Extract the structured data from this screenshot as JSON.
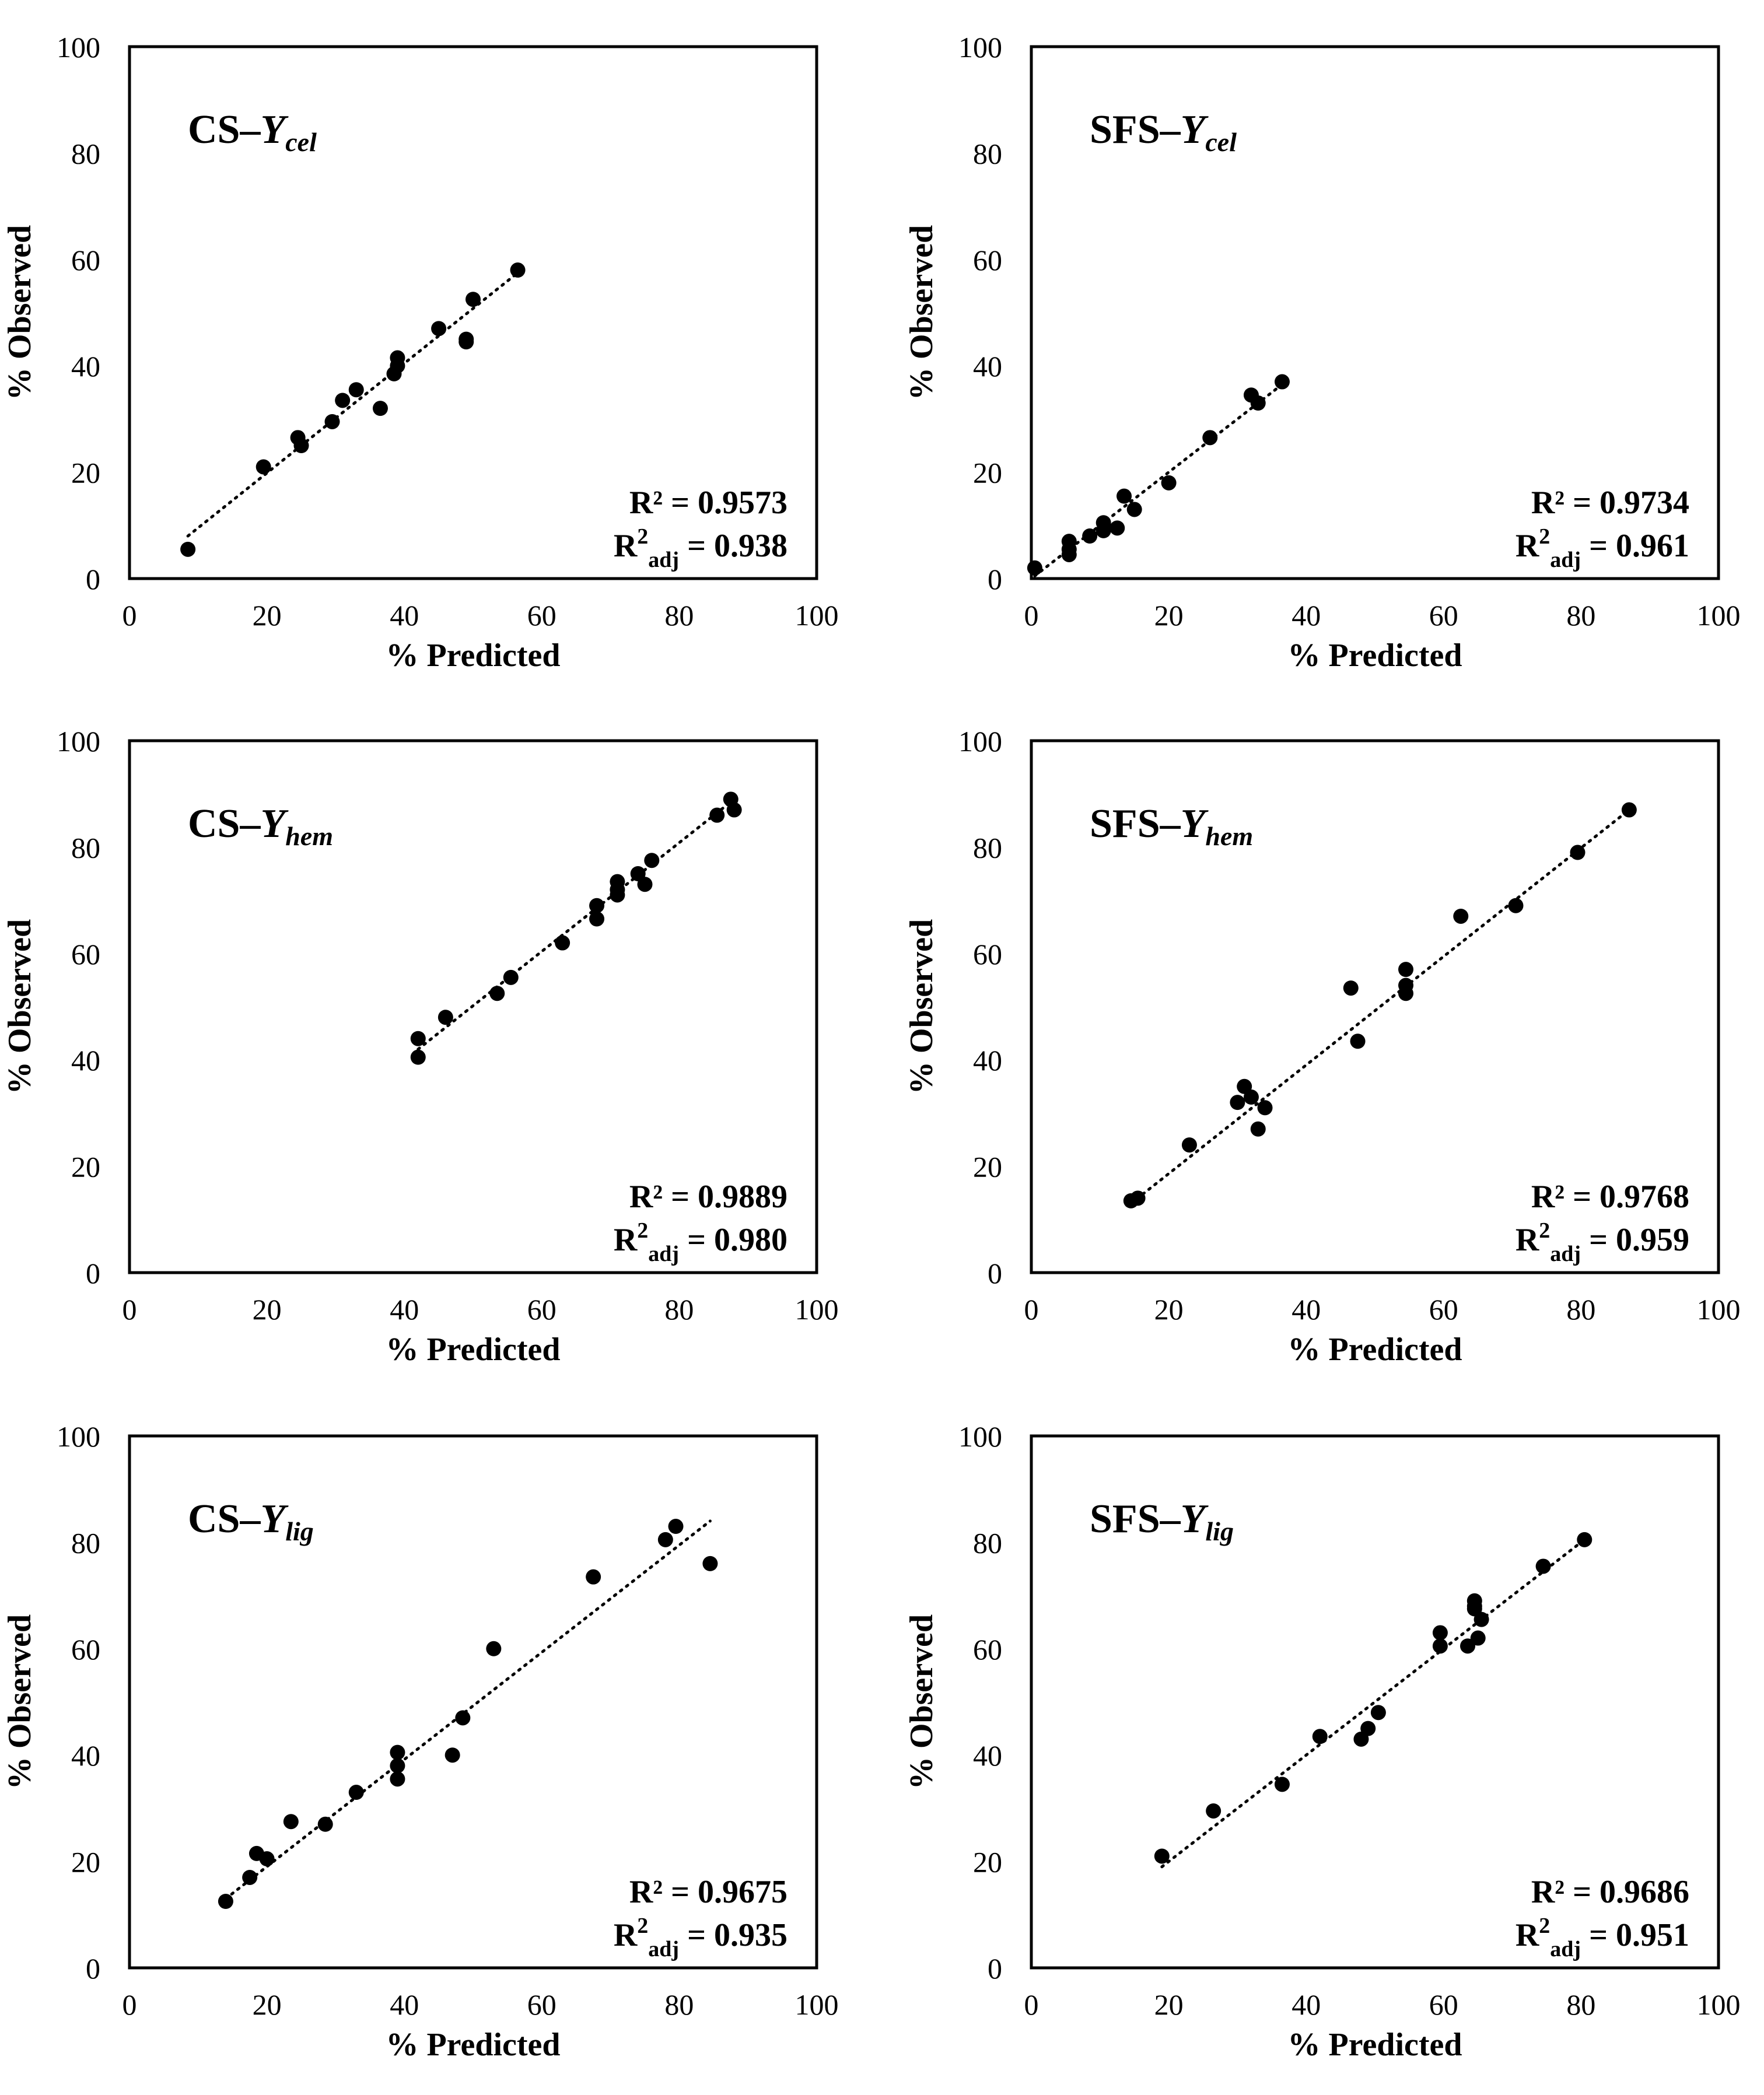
{
  "chart_data": [
    {
      "id": "cs-ycel",
      "type": "scatter",
      "title_prefix": "CS–",
      "title_var": "Y",
      "title_sub": "cel",
      "xlabel": "% Predicted",
      "ylabel": "% Observed",
      "xlim": [
        0,
        100
      ],
      "ylim": [
        0,
        100
      ],
      "xticks": [
        "0",
        "20",
        "40",
        "60",
        "80",
        "100"
      ],
      "yticks": [
        "0",
        "20",
        "40",
        "60",
        "80",
        "100"
      ],
      "r2_text": "R² = 0.9573",
      "r2adj_base": "R",
      "r2adj_sup": "2",
      "r2adj_sub": "adj",
      "r2adj_value": " = 0.938",
      "trendline": {
        "x": [
          8.5,
          57
        ],
        "y": [
          8,
          58
        ]
      },
      "points": [
        [
          8.5,
          5.5
        ],
        [
          19.5,
          21
        ],
        [
          24.5,
          26.5
        ],
        [
          25,
          25
        ],
        [
          29.5,
          29.5
        ],
        [
          31,
          33.5
        ],
        [
          33,
          35.5
        ],
        [
          36.5,
          32
        ],
        [
          38.5,
          38.5
        ],
        [
          39,
          40
        ],
        [
          39,
          41.5
        ],
        [
          45,
          47
        ],
        [
          49,
          45
        ],
        [
          49,
          44.5
        ],
        [
          50,
          52.5
        ],
        [
          56.5,
          58
        ]
      ]
    },
    {
      "id": "sfs-ycel",
      "type": "scatter",
      "title_prefix": "SFS–",
      "title_var": "Y",
      "title_sub": "cel",
      "xlabel": "% Predicted",
      "ylabel": "% Observed",
      "xlim": [
        0,
        100
      ],
      "ylim": [
        0,
        100
      ],
      "xticks": [
        "0",
        "20",
        "40",
        "60",
        "80",
        "100"
      ],
      "yticks": [
        "0",
        "20",
        "40",
        "60",
        "80",
        "100"
      ],
      "r2_text": "R² = 0.9734",
      "r2adj_base": "R",
      "r2adj_sup": "2",
      "r2adj_sub": "adj",
      "r2adj_value": " = 0.961",
      "trendline": {
        "x": [
          0.5,
          37
        ],
        "y": [
          0.5,
          37
        ]
      },
      "points": [
        [
          0.5,
          2
        ],
        [
          5.5,
          4.5
        ],
        [
          5.5,
          5.5
        ],
        [
          5.5,
          7
        ],
        [
          8.5,
          8
        ],
        [
          10.5,
          9
        ],
        [
          10.5,
          10.5
        ],
        [
          12.5,
          9.5
        ],
        [
          13.5,
          15.5
        ],
        [
          15,
          13
        ],
        [
          20,
          18
        ],
        [
          26,
          26.5
        ],
        [
          32,
          34.5
        ],
        [
          33,
          33
        ],
        [
          36.5,
          37
        ]
      ]
    },
    {
      "id": "cs-yhem",
      "type": "scatter",
      "title_prefix": "CS–",
      "title_var": "Y",
      "title_sub": "hem",
      "xlabel": "% Predicted",
      "ylabel": "% Observed",
      "xlim": [
        0,
        100
      ],
      "ylim": [
        0,
        100
      ],
      "xticks": [
        "0",
        "20",
        "40",
        "60",
        "80",
        "100"
      ],
      "yticks": [
        "0",
        "20",
        "40",
        "60",
        "80",
        "100"
      ],
      "r2_text": "R² = 0.9889",
      "r2adj_base": "R",
      "r2adj_sup": "2",
      "r2adj_sub": "adj",
      "r2adj_value": " = 0.980",
      "trendline": {
        "x": [
          42,
          88
        ],
        "y": [
          42,
          89
        ]
      },
      "points": [
        [
          42,
          44
        ],
        [
          42,
          40.5
        ],
        [
          46,
          48
        ],
        [
          53.5,
          52.5
        ],
        [
          55.5,
          55.5
        ],
        [
          63,
          62
        ],
        [
          68,
          69
        ],
        [
          68,
          66.5
        ],
        [
          71,
          73.5
        ],
        [
          71,
          71
        ],
        [
          71,
          72
        ],
        [
          74,
          75
        ],
        [
          75,
          73
        ],
        [
          76,
          77.5
        ],
        [
          85.5,
          86
        ],
        [
          87.5,
          89
        ],
        [
          88,
          87
        ]
      ]
    },
    {
      "id": "sfs-yhem",
      "type": "scatter",
      "title_prefix": "SFS–",
      "title_var": "Y",
      "title_sub": "hem",
      "xlabel": "% Predicted",
      "ylabel": "% Observed",
      "xlim": [
        0,
        100
      ],
      "ylim": [
        0,
        100
      ],
      "xticks": [
        "0",
        "20",
        "40",
        "60",
        "80",
        "100"
      ],
      "yticks": [
        "0",
        "20",
        "40",
        "60",
        "80",
        "100"
      ],
      "r2_text": "R² = 0.9768",
      "r2adj_base": "R",
      "r2adj_sup": "2",
      "r2adj_sub": "adj",
      "r2adj_value": " = 0.959",
      "trendline": {
        "x": [
          14.5,
          87
        ],
        "y": [
          13,
          87
        ]
      },
      "points": [
        [
          14.5,
          13.5
        ],
        [
          15.5,
          14
        ],
        [
          23,
          24
        ],
        [
          30,
          32
        ],
        [
          31,
          35
        ],
        [
          32,
          33
        ],
        [
          33,
          27
        ],
        [
          34,
          31
        ],
        [
          46.5,
          53.5
        ],
        [
          47.5,
          43.5
        ],
        [
          54.5,
          57
        ],
        [
          54.5,
          54
        ],
        [
          54.5,
          52.5
        ],
        [
          62.5,
          67
        ],
        [
          70.5,
          69
        ],
        [
          79.5,
          79
        ],
        [
          87,
          87
        ]
      ]
    },
    {
      "id": "cs-ylig",
      "type": "scatter",
      "title_prefix": "CS–",
      "title_var": "Y",
      "title_sub": "lig",
      "xlabel": "% Predicted",
      "ylabel": "% Observed",
      "xlim": [
        0,
        100
      ],
      "ylim": [
        0,
        100
      ],
      "xticks": [
        "0",
        "20",
        "40",
        "60",
        "80",
        "100"
      ],
      "yticks": [
        "0",
        "20",
        "40",
        "60",
        "80",
        "100"
      ],
      "r2_text": "R² = 0.9675",
      "r2adj_base": "R",
      "r2adj_sup": "2",
      "r2adj_sub": "adj",
      "r2adj_value": " = 0.935",
      "trendline": {
        "x": [
          14,
          84.5
        ],
        "y": [
          13,
          84
        ]
      },
      "points": [
        [
          14,
          12.5
        ],
        [
          17.5,
          17
        ],
        [
          18.5,
          21.5
        ],
        [
          20,
          20.5
        ],
        [
          23.5,
          27.5
        ],
        [
          28.5,
          27
        ],
        [
          33,
          33
        ],
        [
          39,
          40.5
        ],
        [
          39,
          38
        ],
        [
          39,
          35.5
        ],
        [
          47,
          40
        ],
        [
          48.5,
          47
        ],
        [
          53,
          60
        ],
        [
          67.5,
          73.5
        ],
        [
          78,
          80.5
        ],
        [
          79.5,
          83
        ],
        [
          84.5,
          76
        ]
      ]
    },
    {
      "id": "sfs-ylig",
      "type": "scatter",
      "title_prefix": "SFS–",
      "title_var": "Y",
      "title_sub": "lig",
      "xlabel": "% Predicted",
      "ylabel": "% Observed",
      "xlim": [
        0,
        100
      ],
      "ylim": [
        0,
        100
      ],
      "xticks": [
        "0",
        "20",
        "40",
        "60",
        "80",
        "100"
      ],
      "yticks": [
        "0",
        "20",
        "40",
        "60",
        "80",
        "100"
      ],
      "r2_text": "R² = 0.9686",
      "r2adj_base": "R",
      "r2adj_sup": "2",
      "r2adj_sub": "adj",
      "r2adj_value": " = 0.951",
      "trendline": {
        "x": [
          19,
          81
        ],
        "y": [
          19,
          81
        ]
      },
      "points": [
        [
          19,
          21
        ],
        [
          26.5,
          29.5
        ],
        [
          36.5,
          34.5
        ],
        [
          42,
          43.5
        ],
        [
          48,
          43
        ],
        [
          49,
          45
        ],
        [
          50.5,
          48
        ],
        [
          59.5,
          60.5
        ],
        [
          59.5,
          63
        ],
        [
          63.5,
          60.5
        ],
        [
          64.5,
          69
        ],
        [
          64.5,
          68
        ],
        [
          64.5,
          67.5
        ],
        [
          65,
          62
        ],
        [
          65.5,
          65.5
        ],
        [
          74.5,
          75.5
        ],
        [
          80.5,
          80.5
        ]
      ]
    }
  ]
}
